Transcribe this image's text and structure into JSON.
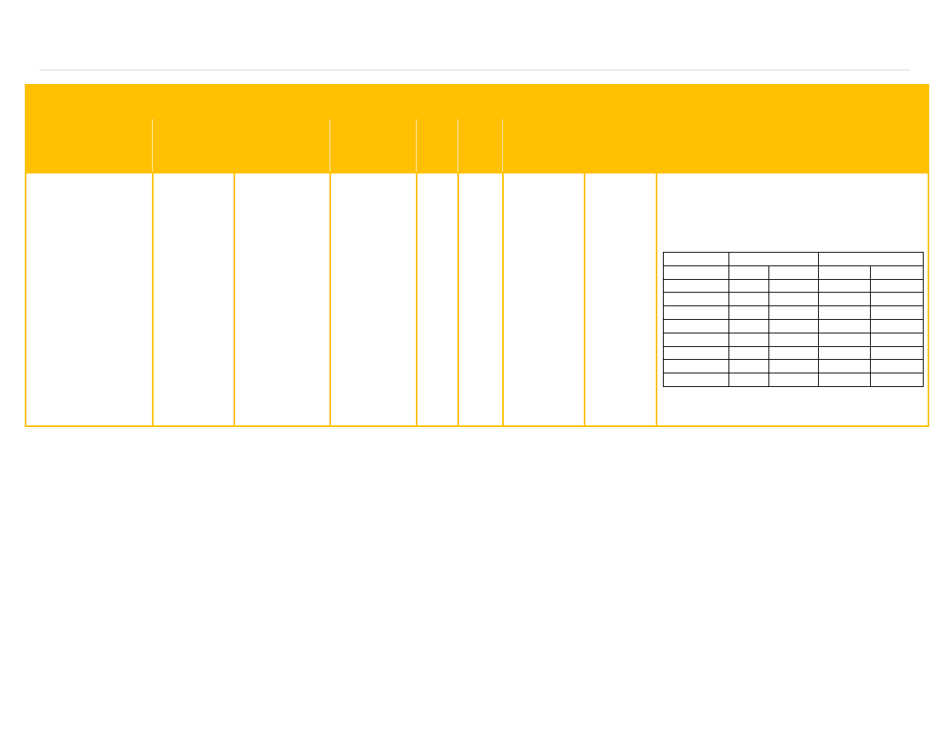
{
  "colors": {
    "accent": "#ffc000",
    "rule": "#d9d9d9",
    "grid": "#000000"
  },
  "header": {
    "columns": [
      "",
      "",
      "",
      "",
      "",
      "",
      "",
      "",
      ""
    ]
  },
  "row": {
    "cells": [
      "",
      "",
      "",
      "",
      "",
      "",
      "",
      "",
      ""
    ]
  },
  "inner_table": {
    "rows": [
      [
        "",
        "",
        "",
        "",
        ""
      ],
      [
        "",
        "",
        "",
        "",
        ""
      ],
      [
        "",
        "",
        "",
        "",
        ""
      ],
      [
        "",
        "",
        "",
        "",
        ""
      ],
      [
        "",
        "",
        "",
        "",
        ""
      ],
      [
        "",
        "",
        "",
        "",
        ""
      ],
      [
        "",
        "",
        "",
        "",
        ""
      ],
      [
        "",
        "",
        "",
        "",
        ""
      ],
      [
        "",
        "",
        "",
        "",
        ""
      ],
      [
        "",
        "",
        "",
        "",
        ""
      ]
    ]
  }
}
